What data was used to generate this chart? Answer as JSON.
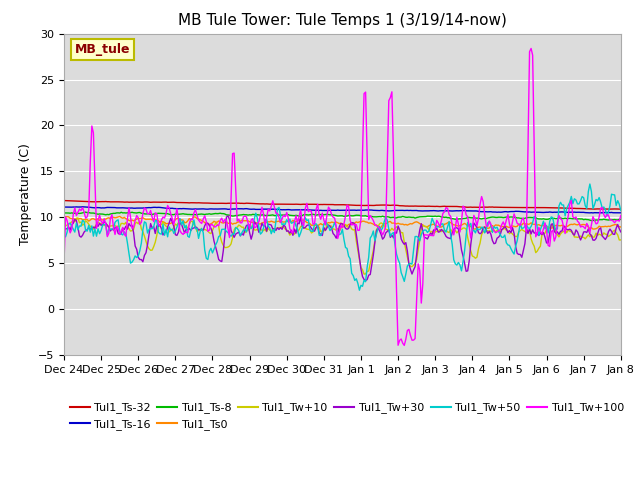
{
  "title": "MB Tule Tower: Tule Temps 1 (3/19/14-now)",
  "ylabel": "Temperature (C)",
  "ylim": [
    -5,
    30
  ],
  "yticks": [
    -5,
    0,
    5,
    10,
    15,
    20,
    25,
    30
  ],
  "background_color": "#dcdcdc",
  "grid_color": "#ffffff",
  "legend_label": "MB_tule",
  "xtick_labels": [
    "Dec 24",
    "Dec 25",
    "Dec 26",
    "Dec 27",
    "Dec 28",
    "Dec 29",
    "Dec 30",
    "Dec 31",
    "Jan 1",
    "Jan 2",
    "Jan 3",
    "Jan 4",
    "Jan 5",
    "Jan 6",
    "Jan 7",
    "Jan 8"
  ],
  "series_names": [
    "Tul1_Ts-32",
    "Tul1_Ts-16",
    "Tul1_Ts-8",
    "Tul1_Ts0",
    "Tul1_Tw+10",
    "Tul1_Tw+30",
    "Tul1_Tw+50",
    "Tul1_Tw+100"
  ],
  "series_colors": [
    "#cc0000",
    "#0000cc",
    "#00bb00",
    "#ff8800",
    "#cccc00",
    "#9900cc",
    "#00cccc",
    "#ff00ff"
  ],
  "title_fontsize": 11,
  "axis_fontsize": 9,
  "tick_fontsize": 8,
  "lw": 1.0,
  "n_points": 361
}
